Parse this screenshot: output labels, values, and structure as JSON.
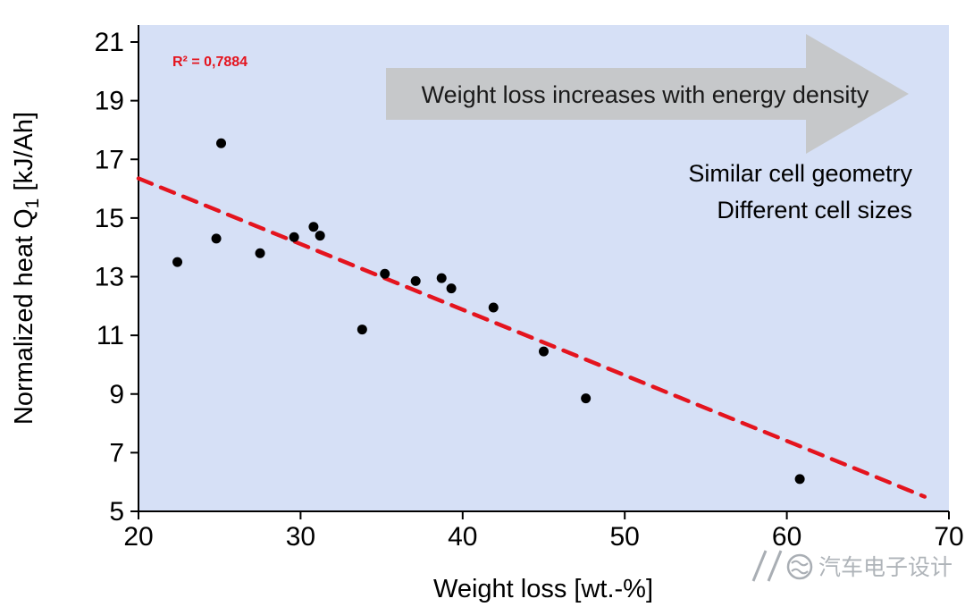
{
  "chart_data": {
    "type": "scatter",
    "xlabel": "Weight loss [wt.-%]",
    "ylabel_pre": "Normalized heat Q",
    "ylabel_sub": "1",
    "ylabel_post": " [kJ/Ah]",
    "xlim": [
      20,
      70
    ],
    "ylim": [
      5,
      21
    ],
    "xticks": [
      20,
      30,
      40,
      50,
      60,
      70
    ],
    "yticks": [
      5,
      7,
      9,
      11,
      13,
      15,
      17,
      19,
      21
    ],
    "points": [
      {
        "x": 22.4,
        "y": 13.5
      },
      {
        "x": 24.8,
        "y": 14.3
      },
      {
        "x": 25.1,
        "y": 17.55
      },
      {
        "x": 27.5,
        "y": 13.8
      },
      {
        "x": 29.6,
        "y": 14.35
      },
      {
        "x": 30.8,
        "y": 14.7
      },
      {
        "x": 31.2,
        "y": 14.4
      },
      {
        "x": 33.8,
        "y": 11.2
      },
      {
        "x": 35.2,
        "y": 13.1
      },
      {
        "x": 37.1,
        "y": 12.85
      },
      {
        "x": 38.7,
        "y": 12.95
      },
      {
        "x": 39.3,
        "y": 12.6
      },
      {
        "x": 41.9,
        "y": 11.95
      },
      {
        "x": 45.0,
        "y": 10.45
      },
      {
        "x": 47.6,
        "y": 8.85
      },
      {
        "x": 60.8,
        "y": 6.1
      }
    ],
    "trendline": {
      "x_start": 20,
      "y_start": 16.35,
      "x_end": 68.5,
      "y_end": 5.5,
      "r_squared_label": "R² = 0,7884"
    },
    "annotations": {
      "arrow_label": "Weight loss increases with energy density",
      "note_line1": "Similar cell geometry",
      "note_line2": "Different cell sizes"
    },
    "colors": {
      "plot_background": "#d6e0f6",
      "point": "#000000",
      "trendline": "#e4141e",
      "r_squared": "#e4141e",
      "arrow_fill": "#c6c8ca",
      "arrow_text": "#1a1a1a",
      "axis": "#000000",
      "watermark": "#a9aeb4"
    }
  },
  "watermark": {
    "text": "汽车电子设计"
  }
}
